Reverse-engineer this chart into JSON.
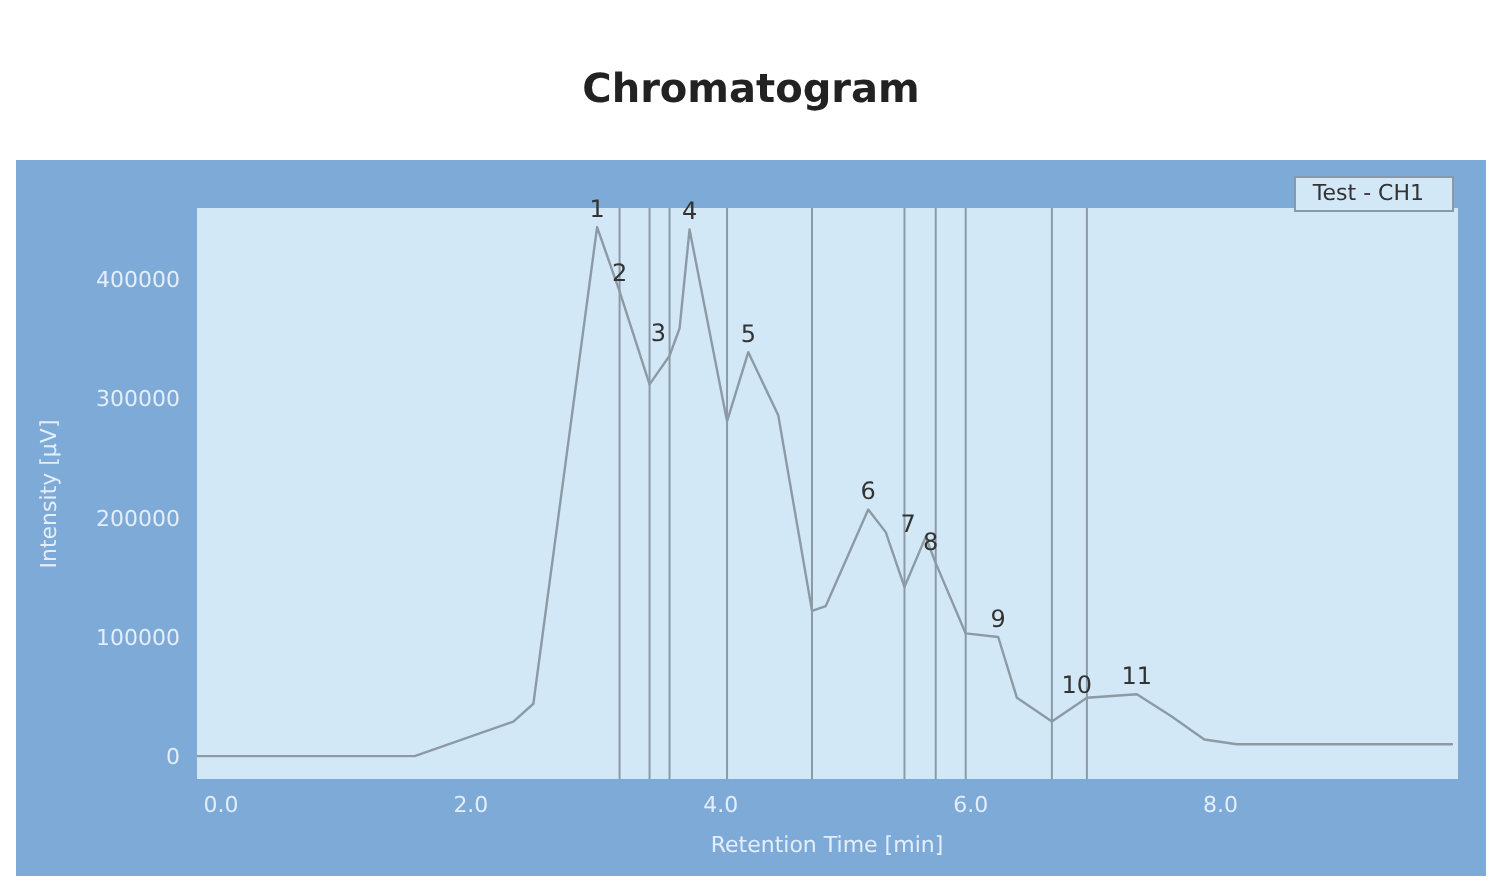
{
  "chart_data": {
    "type": "line",
    "title": "Chromatogram",
    "xlabel": "Retention Time [min]",
    "ylabel": "Intensity [µV]",
    "xlim": [
      -0.2,
      9.9
    ],
    "ylim": [
      -20000,
      460000
    ],
    "xticks": [
      {
        "value": 0,
        "label": "0.0"
      },
      {
        "value": 2,
        "label": "2.0"
      },
      {
        "value": 4,
        "label": "4.0"
      },
      {
        "value": 6,
        "label": "6.0"
      },
      {
        "value": 8,
        "label": "8.0"
      }
    ],
    "yticks": [
      0,
      100000,
      200000,
      300000,
      400000
    ],
    "legend": "top right",
    "grid": false,
    "marker": "none",
    "line_style": "solid",
    "series": [
      {
        "name": "Test - CH1",
        "color": "#8c9aa6",
        "x": [
          -0.2,
          1.55,
          2.34,
          2.5,
          3.01,
          3.19,
          3.43,
          3.59,
          3.67,
          3.75,
          4.05,
          4.22,
          4.46,
          4.73,
          4.84,
          5.18,
          5.32,
          5.47,
          5.64,
          5.72,
          5.96,
          6.22,
          6.37,
          6.65,
          6.93,
          7.33,
          7.6,
          7.87,
          8.13,
          9.86
        ],
        "values": [
          0,
          0,
          29000,
          44000,
          444000,
          390000,
          312000,
          336000,
          359000,
          442000,
          281000,
          339000,
          286000,
          122000,
          126000,
          207000,
          188000,
          142000,
          184000,
          162000,
          103000,
          100000,
          49000,
          29000,
          49000,
          52000,
          34000,
          14000,
          10000,
          10000
        ]
      }
    ],
    "ref_lines": [
      {
        "axis": "x",
        "value": 3.19,
        "color": "#8c9aa6"
      },
      {
        "axis": "x",
        "value": 3.43,
        "color": "#8c9aa6"
      },
      {
        "axis": "x",
        "value": 3.59,
        "color": "#8c9aa6"
      },
      {
        "axis": "x",
        "value": 4.05,
        "color": "#8c9aa6"
      },
      {
        "axis": "x",
        "value": 4.73,
        "color": "#8c9aa6"
      },
      {
        "axis": "x",
        "value": 5.47,
        "color": "#8c9aa6"
      },
      {
        "axis": "x",
        "value": 5.72,
        "color": "#8c9aa6"
      },
      {
        "axis": "x",
        "value": 5.96,
        "color": "#8c9aa6"
      },
      {
        "axis": "x",
        "value": 6.65,
        "color": "#8c9aa6"
      },
      {
        "axis": "x",
        "value": 6.93,
        "color": "#8c9aa6"
      }
    ],
    "annotations": [
      {
        "text": "1",
        "x": 3.01,
        "y": 444000
      },
      {
        "text": "2",
        "x": 3.19,
        "y": 390000
      },
      {
        "text": "3",
        "x": 3.5,
        "y": 340000
      },
      {
        "text": "4",
        "x": 3.75,
        "y": 442000
      },
      {
        "text": "5",
        "x": 4.22,
        "y": 339000
      },
      {
        "text": "6",
        "x": 5.18,
        "y": 207000
      },
      {
        "text": "7",
        "x": 5.5,
        "y": 180000
      },
      {
        "text": "8",
        "x": 5.68,
        "y": 165000
      },
      {
        "text": "9",
        "x": 6.22,
        "y": 100000
      },
      {
        "text": "10",
        "x": 6.85,
        "y": 45000
      },
      {
        "text": "11",
        "x": 7.33,
        "y": 52000
      }
    ]
  }
}
